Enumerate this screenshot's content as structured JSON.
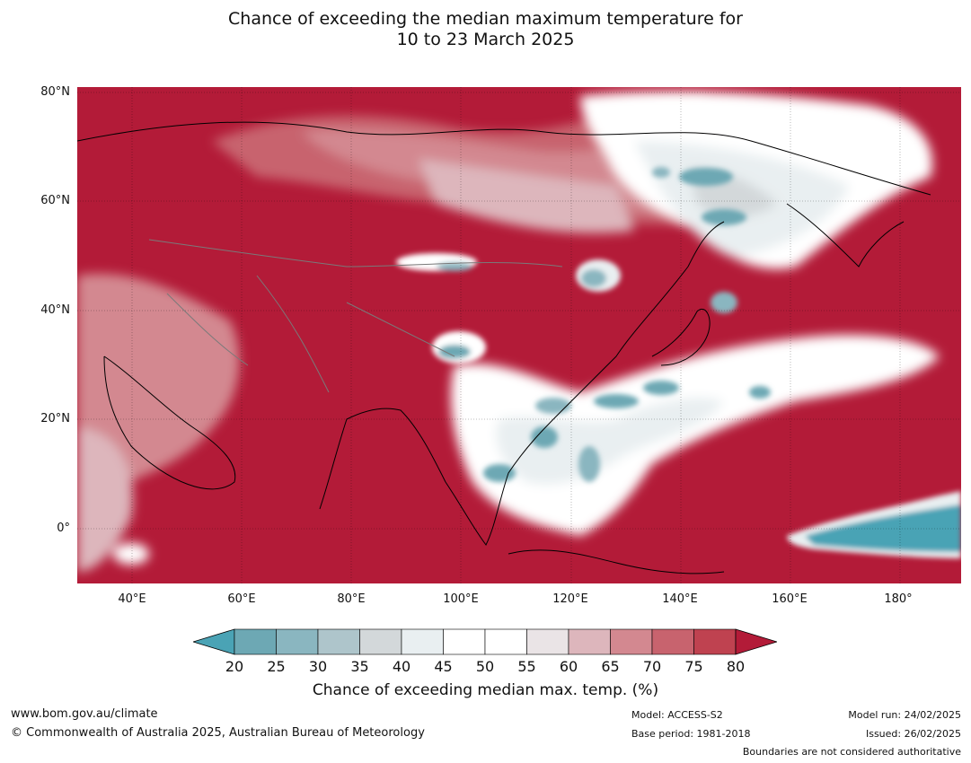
{
  "title": {
    "line1": "Chance of exceeding the median maximum temperature for",
    "line2": "10 to 23 March 2025"
  },
  "map": {
    "region": "Asia and western Pacific",
    "lat_labels": [
      "80°N",
      "60°N",
      "40°N",
      "20°N",
      "0°"
    ],
    "lon_labels": [
      "40°E",
      "60°E",
      "80°E",
      "100°E",
      "120°E",
      "140°E",
      "160°E",
      "180°"
    ],
    "extent": {
      "lon_min": 30,
      "lon_max": 191,
      "lat_min": -10,
      "lat_max": 81
    },
    "dominant_color": "#b31b38"
  },
  "colorbar": {
    "ticks": [
      "20",
      "25",
      "30",
      "35",
      "40",
      "45",
      "50",
      "55",
      "60",
      "65",
      "70",
      "75",
      "80"
    ],
    "colors": [
      "#4aa3b5",
      "#6da8b4",
      "#8ab6c0",
      "#aec5cb",
      "#d3d8da",
      "#e9eff1",
      "#ffffff",
      "#ffffff",
      "#eae4e6",
      "#ddb6bc",
      "#d38890",
      "#c8636e",
      "#bf4250",
      "#b31b38"
    ],
    "label": "Chance of exceeding median max. temp. (%)"
  },
  "footer": {
    "website": "www.bom.gov.au/climate",
    "copyright": "© Commonwealth of Australia 2025, Australian Bureau of Meteorology",
    "model": "Model: ACCESS-S2",
    "base_period": "Base period: 1981-2018",
    "model_run": "Model run: 24/02/2025",
    "issued": "Issued: 26/02/2025",
    "disclaimer": "Boundaries are not considered authoritative"
  }
}
